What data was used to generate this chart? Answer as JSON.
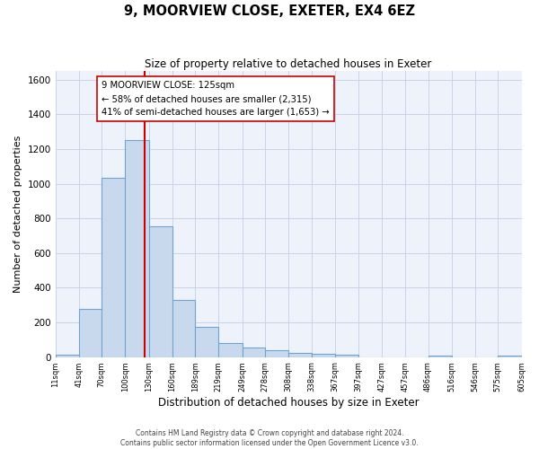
{
  "title": "9, MOORVIEW CLOSE, EXETER, EX4 6EZ",
  "subtitle": "Size of property relative to detached houses in Exeter",
  "xlabel": "Distribution of detached houses by size in Exeter",
  "ylabel": "Number of detached properties",
  "bin_labels": [
    "11sqm",
    "41sqm",
    "70sqm",
    "100sqm",
    "130sqm",
    "160sqm",
    "189sqm",
    "219sqm",
    "249sqm",
    "278sqm",
    "308sqm",
    "338sqm",
    "367sqm",
    "397sqm",
    "427sqm",
    "457sqm",
    "486sqm",
    "516sqm",
    "546sqm",
    "575sqm",
    "605sqm"
  ],
  "bin_edges": [
    11,
    41,
    70,
    100,
    130,
    160,
    189,
    219,
    249,
    278,
    308,
    338,
    367,
    397,
    427,
    457,
    486,
    516,
    546,
    575,
    605
  ],
  "bar_heights": [
    15,
    280,
    1035,
    1250,
    755,
    330,
    175,
    80,
    55,
    40,
    25,
    20,
    15,
    0,
    0,
    0,
    10,
    0,
    0,
    10
  ],
  "bar_color": "#c8d9ee",
  "bar_edge_color": "#6fa3d0",
  "property_line_x": 125,
  "property_line_color": "#cc0000",
  "ylim": [
    0,
    1650
  ],
  "yticks": [
    0,
    200,
    400,
    600,
    800,
    1000,
    1200,
    1400,
    1600
  ],
  "annotation_title": "9 MOORVIEW CLOSE: 125sqm",
  "annotation_line1": "← 58% of detached houses are smaller (2,315)",
  "annotation_line2": "41% of semi-detached houses are larger (1,653) →",
  "footer_line1": "Contains HM Land Registry data © Crown copyright and database right 2024.",
  "footer_line2": "Contains public sector information licensed under the Open Government Licence v3.0.",
  "grid_color": "#c8d4e8",
  "background_color": "#edf2fb"
}
